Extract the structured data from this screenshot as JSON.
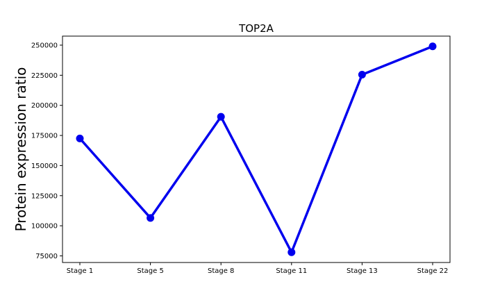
{
  "chart_data": {
    "type": "line",
    "title": "TOP2A",
    "xlabel": "",
    "ylabel": "Protein expression ratio",
    "categories": [
      "Stage 1",
      "Stage 5",
      "Stage 8",
      "Stage 11",
      "Stage 13",
      "Stage 22"
    ],
    "series": [
      {
        "values": [
          172500,
          106500,
          190500,
          78000,
          225500,
          249000
        ],
        "color": "#0000ee"
      }
    ],
    "ylim": [
      69500,
      257500
    ],
    "yticks": [
      75000,
      100000,
      125000,
      150000,
      175000,
      200000,
      225000,
      250000
    ],
    "ytick_labels": [
      "75000",
      "100000",
      "125000",
      "150000",
      "175000",
      "200000",
      "225000",
      "250000"
    ],
    "grid": false,
    "legend": "none"
  }
}
